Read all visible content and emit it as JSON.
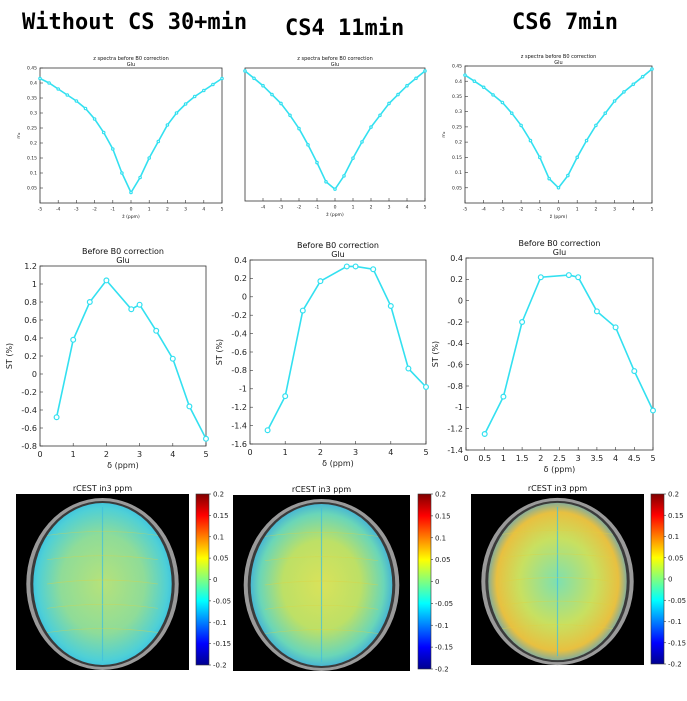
{
  "column_titles": [
    "Without CS 30+min",
    "CS4 11min",
    "CS6 7min"
  ],
  "colors": {
    "line": "#33e0f0",
    "axis": "#333333"
  },
  "chart_data": [
    {
      "type": "line",
      "row": 0,
      "col": 0,
      "title": "z spectra before B0 correction",
      "subtitle": "Glu",
      "xlabel": "ž (ppm)",
      "ylabel": "mₖ",
      "xlim": [
        -5,
        5
      ],
      "ylim": [
        0,
        0.45
      ],
      "xticks": [
        -5,
        -4,
        -3,
        -2,
        -1,
        0,
        1,
        2,
        3,
        4,
        5
      ],
      "yticks": [
        0.05,
        0.1,
        0.15,
        0.2,
        0.25,
        0.3,
        0.35,
        0.4,
        0.45
      ],
      "x": [
        -5,
        -4.5,
        -4,
        -3.5,
        -3,
        -2.5,
        -2,
        -1.5,
        -1,
        -0.5,
        0,
        0.5,
        1,
        1.5,
        2,
        2.5,
        3,
        3.5,
        4,
        4.5,
        5
      ],
      "y": [
        0.415,
        0.4,
        0.38,
        0.36,
        0.34,
        0.315,
        0.28,
        0.235,
        0.18,
        0.1,
        0.035,
        0.085,
        0.15,
        0.205,
        0.26,
        0.3,
        0.33,
        0.355,
        0.375,
        0.395,
        0.415
      ]
    },
    {
      "type": "line",
      "row": 0,
      "col": 1,
      "title": "z spectra before B0 correction",
      "subtitle": "Glu",
      "xlabel": "ž (ppm)",
      "ylabel": "",
      "xlim": [
        -5,
        5
      ],
      "ylim": [
        0,
        0.45
      ],
      "xticks": [
        -4,
        -3,
        -2,
        -1,
        0,
        1,
        2,
        3,
        4,
        5
      ],
      "yticks": [],
      "x": [
        -5,
        -4.5,
        -4,
        -3.5,
        -3,
        -2.5,
        -2,
        -1.5,
        -1,
        -0.5,
        0,
        0.5,
        1,
        1.5,
        2,
        2.5,
        3,
        3.5,
        4,
        4.5,
        5
      ],
      "y": [
        0.44,
        0.415,
        0.39,
        0.36,
        0.33,
        0.29,
        0.245,
        0.19,
        0.13,
        0.065,
        0.04,
        0.085,
        0.145,
        0.2,
        0.25,
        0.29,
        0.33,
        0.36,
        0.39,
        0.415,
        0.44
      ]
    },
    {
      "type": "line",
      "row": 0,
      "col": 2,
      "title": "z spectra before B0 correction",
      "subtitle": "Glu",
      "xlabel": "ž (ppm)",
      "ylabel": "mₖ",
      "xlim": [
        -5,
        5
      ],
      "ylim": [
        0,
        0.45
      ],
      "xticks": [
        -5,
        -4,
        -3,
        -2,
        -1,
        0,
        1,
        2,
        3,
        4,
        5
      ],
      "yticks": [
        0.05,
        0.1,
        0.15,
        0.2,
        0.25,
        0.3,
        0.35,
        0.4,
        0.45
      ],
      "x": [
        -5,
        -4.5,
        -4,
        -3.5,
        -3,
        -2.5,
        -2,
        -1.5,
        -1,
        -0.5,
        0,
        0.5,
        1,
        1.5,
        2,
        2.5,
        3,
        3.5,
        4,
        4.5,
        5
      ],
      "y": [
        0.42,
        0.4,
        0.38,
        0.355,
        0.33,
        0.295,
        0.255,
        0.205,
        0.15,
        0.08,
        0.05,
        0.09,
        0.15,
        0.205,
        0.255,
        0.295,
        0.335,
        0.365,
        0.39,
        0.415,
        0.44
      ]
    },
    {
      "type": "line",
      "row": 1,
      "col": 0,
      "title": "Before B0 correction",
      "subtitle": "Glu",
      "xlabel": "δ (ppm)",
      "ylabel": "ST (%)",
      "xlim": [
        0,
        5
      ],
      "ylim": [
        -0.8,
        1.2
      ],
      "xticks": [
        0,
        1,
        2,
        3,
        4,
        5
      ],
      "yticks": [
        -0.8,
        -0.6,
        -0.4,
        -0.2,
        0,
        0.2,
        0.4,
        0.6,
        0.8,
        1,
        1.2
      ],
      "x": [
        0.5,
        1,
        1.5,
        2,
        2.75,
        3,
        3.5,
        4,
        4.5,
        5
      ],
      "y": [
        -0.48,
        0.38,
        0.8,
        1.04,
        0.72,
        0.77,
        0.48,
        0.17,
        -0.36,
        -0.72
      ]
    },
    {
      "type": "line",
      "row": 1,
      "col": 1,
      "title": "Before B0 correction",
      "subtitle": "Glu",
      "xlabel": "δ (ppm)",
      "ylabel": "ST (%)",
      "xlim": [
        0,
        5
      ],
      "ylim": [
        -1.6,
        0.4
      ],
      "xticks": [
        0,
        1,
        2,
        3,
        4,
        5
      ],
      "yticks": [
        -1.6,
        -1.4,
        -1.2,
        -1,
        -0.8,
        -0.6,
        -0.4,
        -0.2,
        0,
        0.2,
        0.4
      ],
      "x": [
        0.5,
        1,
        1.5,
        2,
        2.75,
        3,
        3.5,
        4,
        4.5,
        5
      ],
      "y": [
        -1.45,
        -1.08,
        -0.15,
        0.17,
        0.33,
        0.33,
        0.3,
        -0.1,
        -0.78,
        -0.98
      ]
    },
    {
      "type": "line",
      "row": 1,
      "col": 2,
      "title": "Before B0 correction",
      "subtitle": "Glu",
      "xlabel": "δ (ppm)",
      "ylabel": "ST (%)",
      "xlim": [
        0,
        5
      ],
      "ylim": [
        -1.4,
        0.4
      ],
      "xticks": [
        0,
        0.5,
        1,
        1.5,
        2,
        2.5,
        3,
        3.5,
        4,
        4.5,
        5
      ],
      "yticks": [
        -1.4,
        -1.2,
        -1,
        -0.8,
        -0.6,
        -0.4,
        -0.2,
        0,
        0.2,
        0.4
      ],
      "x": [
        0.5,
        1,
        1.5,
        2,
        2.75,
        3,
        3.5,
        4,
        4.5,
        5
      ],
      "y": [
        -1.25,
        -0.9,
        -0.2,
        0.22,
        0.24,
        0.22,
        -0.1,
        -0.25,
        -0.66,
        -1.03
      ]
    },
    {
      "type": "heatmap",
      "row": 2,
      "col": 0,
      "title": "rCEST in3 ppm",
      "colorbar_range": [
        -0.2,
        0.2
      ],
      "colorbar_ticks": [
        "0.2",
        "0.15",
        "0.1",
        "0.05",
        "0",
        "-0.05",
        "-0.1",
        "-0.15",
        "-0.2"
      ]
    },
    {
      "type": "heatmap",
      "row": 2,
      "col": 1,
      "title": "rCEST in3 ppm",
      "colorbar_range": [
        -0.2,
        0.2
      ],
      "colorbar_ticks": [
        "0.2",
        "0.15",
        "0.1",
        "0.05",
        "0",
        "-0.05",
        "-0.1",
        "-0.15",
        "-0.2"
      ]
    },
    {
      "type": "heatmap",
      "row": 2,
      "col": 2,
      "title": "rCEST in3 ppm",
      "colorbar_range": [
        -0.2,
        0.2
      ],
      "colorbar_ticks": [
        "0.2",
        "0.15",
        "0.1",
        "0.05",
        "0",
        "-0.05",
        "-0.1",
        "-0.15",
        "-0.2"
      ]
    }
  ]
}
